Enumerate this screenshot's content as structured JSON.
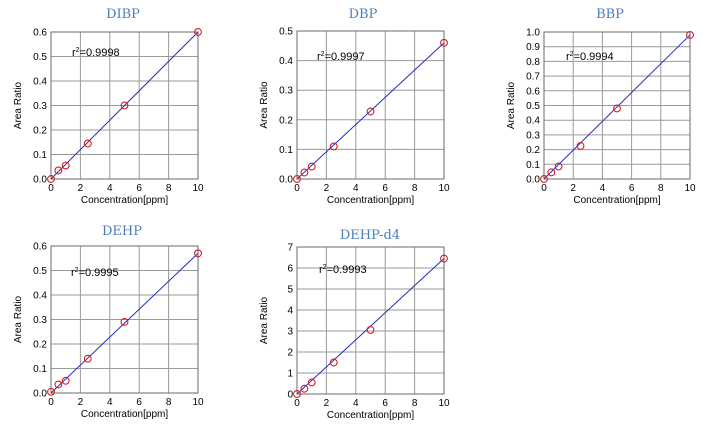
{
  "chart_data": [
    {
      "type": "scatter",
      "title": "DIBP",
      "xlabel": "Concentration[ppm]",
      "ylabel": "Area Ratio",
      "r2_prefix": "r",
      "r2_sup": "2",
      "r2_value": "=0.9998",
      "xlim": [
        0,
        10
      ],
      "ylim": [
        0,
        0.6
      ],
      "xticks": [
        "0",
        "2",
        "4",
        "6",
        "8",
        "10"
      ],
      "yticks": [
        "0.0",
        "0.1",
        "0.2",
        "0.3",
        "0.4",
        "0.5",
        "0.6"
      ],
      "grid": true,
      "points": {
        "x": [
          0,
          0.5,
          1,
          2.5,
          5,
          10
        ],
        "y": [
          0.0,
          0.035,
          0.055,
          0.145,
          0.3,
          0.6
        ]
      },
      "fit": {
        "x": [
          0,
          10
        ],
        "y": [
          0.0,
          0.6
        ]
      }
    },
    {
      "type": "scatter",
      "title": "DBP",
      "xlabel": "Concentration[ppm]",
      "ylabel": "Area Ratio",
      "r2_prefix": "r",
      "r2_sup": "2",
      "r2_value": "=0.9997",
      "xlim": [
        0,
        10
      ],
      "ylim": [
        0,
        0.5
      ],
      "xticks": [
        "0",
        "2",
        "4",
        "6",
        "8",
        "10"
      ],
      "yticks": [
        "0.0",
        "0.1",
        "0.2",
        "0.3",
        "0.4",
        "0.5"
      ],
      "grid": true,
      "points": {
        "x": [
          0,
          0.5,
          1,
          2.5,
          5,
          10
        ],
        "y": [
          0.0,
          0.022,
          0.042,
          0.11,
          0.228,
          0.46
        ]
      },
      "fit": {
        "x": [
          0,
          10
        ],
        "y": [
          0.0,
          0.46
        ]
      }
    },
    {
      "type": "scatter",
      "title": "BBP",
      "xlabel": "Concentration[ppm]",
      "ylabel": "Area Ratio",
      "r2_prefix": "r",
      "r2_sup": "2",
      "r2_value": "=0.9994",
      "xlim": [
        0,
        10
      ],
      "ylim": [
        0,
        1.0
      ],
      "xticks": [
        "0",
        "2",
        "4",
        "6",
        "8",
        "10"
      ],
      "yticks": [
        "0.0",
        "0.1",
        "0.2",
        "0.3",
        "0.4",
        "0.5",
        "0.6",
        "0.7",
        "0.8",
        "0.9",
        "1.0"
      ],
      "grid": true,
      "points": {
        "x": [
          0,
          0.5,
          1,
          2.5,
          5,
          10
        ],
        "y": [
          0.0,
          0.045,
          0.085,
          0.225,
          0.48,
          0.98
        ]
      },
      "fit": {
        "x": [
          0,
          10
        ],
        "y": [
          0.0,
          0.98
        ]
      }
    },
    {
      "type": "scatter",
      "title": "DEHP",
      "xlabel": "Concentration[ppm]",
      "ylabel": "Area Ratio",
      "r2_prefix": "r",
      "r2_sup": "2",
      "r2_value": "=0.9995",
      "xlim": [
        0,
        10
      ],
      "ylim": [
        0,
        0.6
      ],
      "xticks": [
        "0",
        "2",
        "4",
        "6",
        "8",
        "10"
      ],
      "yticks": [
        "0.0",
        "0.1",
        "0.2",
        "0.3",
        "0.4",
        "0.5",
        "0.6"
      ],
      "grid": true,
      "points": {
        "x": [
          0,
          0.5,
          1,
          2.5,
          5,
          10
        ],
        "y": [
          0.005,
          0.035,
          0.05,
          0.14,
          0.29,
          0.57
        ]
      },
      "fit": {
        "x": [
          0,
          10
        ],
        "y": [
          0.0,
          0.57
        ]
      }
    },
    {
      "type": "scatter",
      "title": "DEHP-d4",
      "xlabel": "Concentration[ppm]",
      "ylabel": "Area Ratio",
      "r2_prefix": "r",
      "r2_sup": "2",
      "r2_value": "=0.9993",
      "xlim": [
        0,
        10
      ],
      "ylim": [
        0,
        7
      ],
      "xticks": [
        "0",
        "2",
        "4",
        "6",
        "8",
        "10"
      ],
      "yticks": [
        "0",
        "1",
        "2",
        "3",
        "4",
        "5",
        "6",
        "7"
      ],
      "grid": true,
      "points": {
        "x": [
          0,
          0.5,
          1,
          2.5,
          5,
          10
        ],
        "y": [
          0.0,
          0.25,
          0.55,
          1.5,
          3.05,
          6.45
        ]
      },
      "fit": {
        "x": [
          0,
          10
        ],
        "y": [
          0.0,
          6.45
        ]
      }
    }
  ],
  "colors": {
    "title": "#4a7ebb",
    "fit_line": "#1f2fbf",
    "points": "#d42020",
    "grid": "#9a9a9a"
  }
}
